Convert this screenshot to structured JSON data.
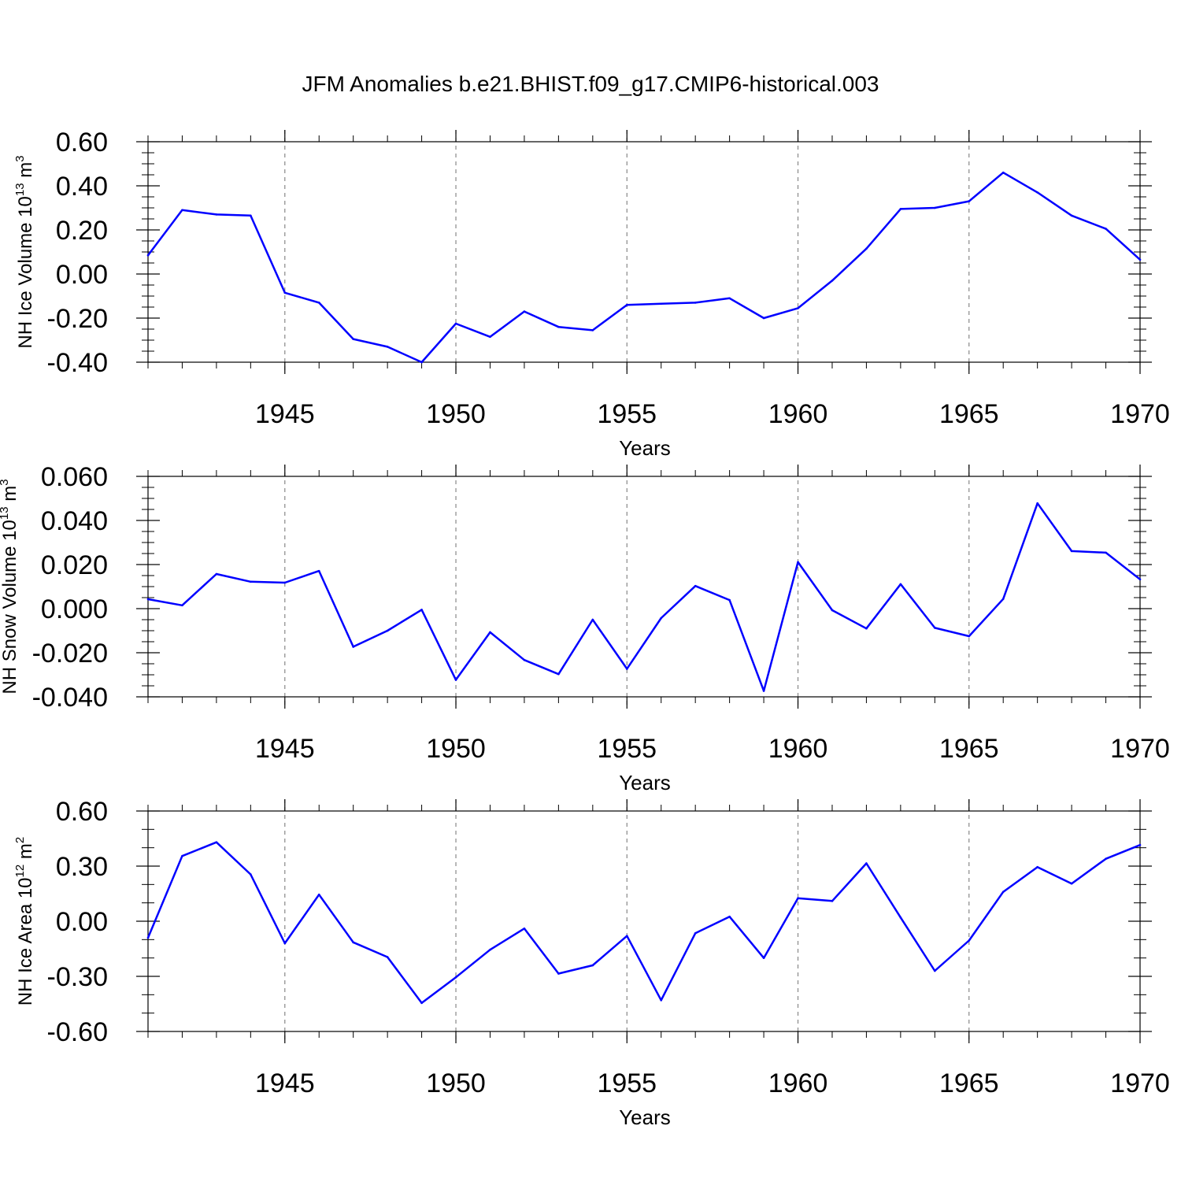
{
  "title": "JFM Anomalies b.e21.BHIST.f09_g17.CMIP6-historical.003",
  "colors": {
    "line": "#0000ff",
    "frame": "#000000",
    "grid": "#888888",
    "background": "#ffffff"
  },
  "chart_data": [
    {
      "type": "line",
      "ylabel_parts": [
        "NH Ice Volume 10",
        "13",
        " m",
        "3"
      ],
      "xlabel": "Years",
      "xlim": [
        1941,
        1970
      ],
      "ylim": [
        -0.4,
        0.6
      ],
      "y_ticks": [
        -0.4,
        -0.2,
        0.0,
        0.2,
        0.4,
        0.6
      ],
      "y_tick_labels": [
        "-0.40",
        "-0.20",
        "0.00",
        "0.20",
        "0.40",
        "0.60"
      ],
      "y_minor_step": 0.05,
      "x_ticks": [
        1945,
        1950,
        1955,
        1960,
        1965,
        1970
      ],
      "x_tick_labels": [
        "1945",
        "1950",
        "1955",
        "1960",
        "1965",
        "1970"
      ],
      "grid": "vertical dashed at major x ticks",
      "x": [
        1941,
        1942,
        1943,
        1944,
        1945,
        1946,
        1947,
        1948,
        1949,
        1950,
        1951,
        1952,
        1953,
        1954,
        1955,
        1956,
        1957,
        1958,
        1959,
        1960,
        1961,
        1962,
        1963,
        1964,
        1965,
        1966,
        1967,
        1968,
        1969,
        1970
      ],
      "series": [
        {
          "values": [
            0.085,
            0.29,
            0.27,
            0.265,
            -0.085,
            -0.13,
            -0.295,
            -0.33,
            -0.4,
            -0.225,
            -0.285,
            -0.17,
            -0.24,
            -0.255,
            -0.14,
            -0.135,
            -0.13,
            -0.11,
            -0.2,
            -0.155,
            -0.03,
            0.115,
            0.295,
            0.3,
            0.33,
            0.46,
            0.37,
            0.265,
            0.205,
            0.065
          ]
        }
      ]
    },
    {
      "type": "line",
      "ylabel_parts": [
        "NH Snow Volume 10",
        "13",
        " m",
        "3"
      ],
      "xlabel": "Years",
      "xlim": [
        1941,
        1970
      ],
      "ylim": [
        -0.04,
        0.06
      ],
      "y_ticks": [
        -0.04,
        -0.02,
        0.0,
        0.02,
        0.04,
        0.06
      ],
      "y_tick_labels": [
        "-0.040",
        "-0.020",
        "0.000",
        "0.020",
        "0.040",
        "0.060"
      ],
      "y_minor_step": 0.005,
      "x_ticks": [
        1945,
        1950,
        1955,
        1960,
        1965,
        1970
      ],
      "x_tick_labels": [
        "1945",
        "1950",
        "1955",
        "1960",
        "1965",
        "1970"
      ],
      "grid": "vertical dashed at major x ticks",
      "x": [
        1941,
        1942,
        1943,
        1944,
        1945,
        1946,
        1947,
        1948,
        1949,
        1950,
        1951,
        1952,
        1953,
        1954,
        1955,
        1956,
        1957,
        1958,
        1959,
        1960,
        1961,
        1962,
        1963,
        1964,
        1965,
        1966,
        1967,
        1968,
        1969,
        1970
      ],
      "series": [
        {
          "values": [
            0.0043,
            0.0015,
            0.0157,
            0.0122,
            0.0118,
            0.0171,
            -0.0173,
            -0.01,
            -0.0005,
            -0.0323,
            -0.0107,
            -0.0233,
            -0.0297,
            -0.005,
            -0.0273,
            -0.0043,
            0.0103,
            0.0039,
            -0.0373,
            0.0211,
            -0.0007,
            -0.009,
            0.0111,
            -0.0087,
            -0.0125,
            0.0044,
            0.0478,
            0.0261,
            0.0254,
            0.0133
          ]
        }
      ]
    },
    {
      "type": "line",
      "ylabel_parts": [
        "NH Ice Area 10",
        "12",
        " m",
        "2"
      ],
      "xlabel": "Years",
      "xlim": [
        1941,
        1970
      ],
      "ylim": [
        -0.6,
        0.6
      ],
      "y_ticks": [
        -0.6,
        -0.3,
        0.0,
        0.3,
        0.6
      ],
      "y_tick_labels": [
        "-0.60",
        "-0.30",
        "0.00",
        "0.30",
        "0.60"
      ],
      "y_minor_step": 0.1,
      "x_ticks": [
        1945,
        1950,
        1955,
        1960,
        1965,
        1970
      ],
      "x_tick_labels": [
        "1945",
        "1950",
        "1955",
        "1960",
        "1965",
        "1970"
      ],
      "grid": "vertical dashed at major x ticks",
      "x": [
        1941,
        1942,
        1943,
        1944,
        1945,
        1946,
        1947,
        1948,
        1949,
        1950,
        1951,
        1952,
        1953,
        1954,
        1955,
        1956,
        1957,
        1958,
        1959,
        1960,
        1961,
        1962,
        1963,
        1964,
        1965,
        1966,
        1967,
        1968,
        1969,
        1970
      ],
      "series": [
        {
          "values": [
            -0.09,
            0.355,
            0.43,
            0.255,
            -0.12,
            0.145,
            -0.115,
            -0.195,
            -0.445,
            -0.305,
            -0.155,
            -0.04,
            -0.285,
            -0.24,
            -0.08,
            -0.43,
            -0.065,
            0.025,
            -0.2,
            0.125,
            0.11,
            0.315,
            0.02,
            -0.27,
            -0.105,
            0.16,
            0.295,
            0.205,
            0.34,
            0.415
          ]
        }
      ]
    }
  ]
}
